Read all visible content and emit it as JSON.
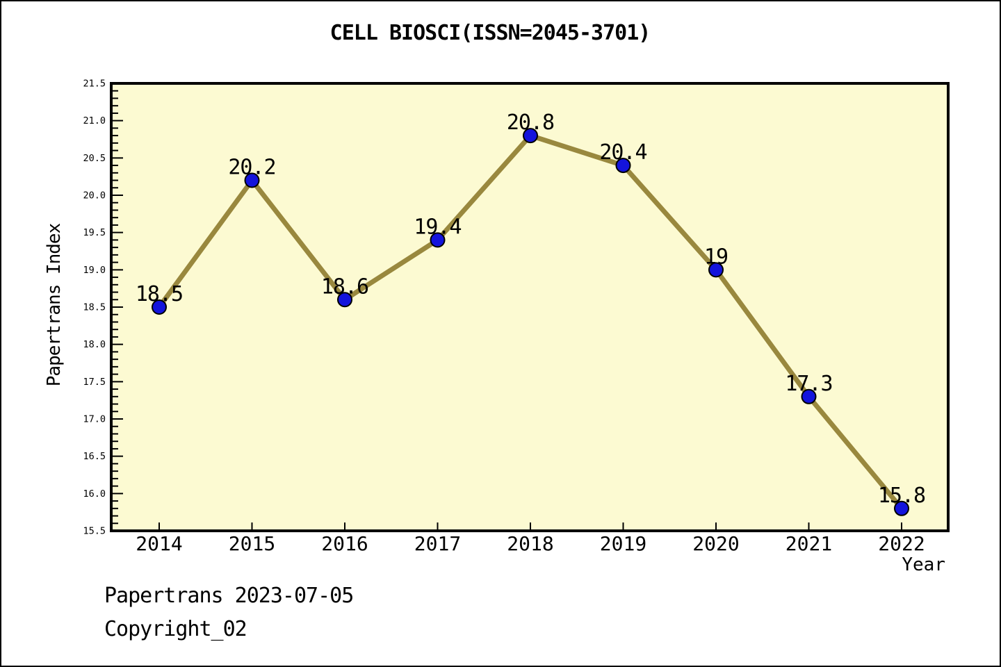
{
  "chart_data": {
    "type": "line",
    "title": "CELL BIOSCI(ISSN=2045-3701)",
    "xlabel": "Year",
    "ylabel": "Papertrans Index",
    "x": [
      2014,
      2015,
      2016,
      2017,
      2018,
      2019,
      2020,
      2021,
      2022
    ],
    "x_tick_labels": [
      "2014",
      "2015",
      "2016",
      "2017",
      "2018",
      "2019",
      "2020",
      "2021",
      "2022"
    ],
    "values": [
      18.5,
      20.2,
      18.6,
      19.4,
      20.8,
      20.4,
      19,
      17.3,
      15.8
    ],
    "point_labels": [
      "18.5",
      "20.2",
      "18.6",
      "19.4",
      "20.8",
      "20.4",
      "19",
      "17.3",
      "15.8"
    ],
    "ylim": [
      15.5,
      21.5
    ],
    "y_major_tick_step": 0.5,
    "y_minor_tick_step": 0.1,
    "y_tick_labels": [
      "15.5",
      "16.0",
      "16.5",
      "17.0",
      "17.5",
      "18.0",
      "18.5",
      "19.0",
      "19.5",
      "20.0",
      "20.5",
      "21.0",
      "21.5"
    ],
    "grid": false,
    "legend": "none",
    "colors": {
      "plot_background": "#FCFAD2",
      "line": "#99883E",
      "marker_fill": "#1414DC",
      "marker_edge": "#000000",
      "frame": "#000000",
      "text": "#000000"
    }
  },
  "footer": {
    "line1": "Papertrans 2023-07-05",
    "line2": "Copyright_02"
  }
}
